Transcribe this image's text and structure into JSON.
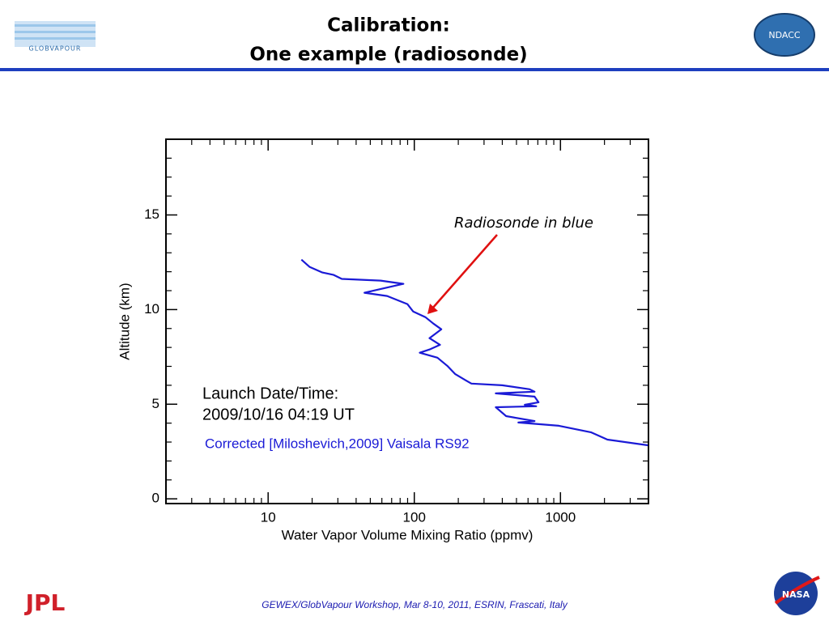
{
  "header": {
    "title_line1": "Calibration:",
    "title_line2": "One example (radiosonde)"
  },
  "logos": {
    "left_top": "GLOBVAPOUR",
    "right_top": "NDACC",
    "left_bottom": "JPL",
    "right_bottom": "NASA"
  },
  "footer": "GEWEX/GlobVapour Workshop, Mar 8-10, 2011, ESRIN, Frascati, Italy",
  "chart_data": {
    "type": "line",
    "x_label": "Water Vapor Volume Mixing Ratio (ppmv)",
    "y_label": "Altitude (km)",
    "annotations": [
      "Radiosonde in blue",
      "Launch Date/Time:",
      "2009/10/16 04:19 UT"
    ],
    "xscale": "log",
    "xlim": [
      2,
      4000
    ],
    "ylim": [
      -0.25,
      19
    ],
    "xticks": [
      10,
      100,
      1000
    ],
    "xminorticks": [
      2,
      3,
      4,
      5,
      6,
      7,
      8,
      9,
      20,
      30,
      40,
      50,
      60,
      70,
      80,
      90,
      200,
      300,
      400,
      500,
      600,
      700,
      800,
      900,
      2000,
      3000,
      4000
    ],
    "yticks": [
      0,
      5,
      10,
      15
    ],
    "yminorticks": [
      1,
      2,
      3,
      4,
      6,
      7,
      8,
      9,
      11,
      12,
      13,
      14,
      16,
      17,
      18,
      19
    ],
    "series": [
      {
        "name": "Corrected [Miloshevich,2009] Vaisala RS92",
        "color": "#1a1ad6",
        "x": [
          16.9,
          19.2,
          23.5,
          28.1,
          31.9,
          58.9,
          84.2,
          45.6,
          65.2,
          89.7,
          98.2,
          119,
          135,
          153,
          127,
          150,
          127,
          109,
          144,
          168,
          190,
          225,
          246,
          399,
          615,
          665,
          361,
          665,
          708,
          570,
          682,
          361,
          425,
          665,
          515,
          975,
          1625,
          2096,
          3964
        ],
        "values": [
          12.64,
          12.26,
          11.96,
          11.83,
          11.62,
          11.53,
          11.36,
          10.89,
          10.72,
          10.29,
          9.9,
          9.6,
          9.26,
          8.96,
          8.49,
          8.14,
          7.89,
          7.72,
          7.46,
          7.03,
          6.6,
          6.26,
          6.09,
          6.0,
          5.79,
          5.66,
          5.57,
          5.4,
          5.1,
          4.97,
          4.89,
          4.84,
          4.37,
          4.11,
          4.03,
          3.86,
          3.51,
          3.13,
          2.83
        ]
      }
    ]
  }
}
